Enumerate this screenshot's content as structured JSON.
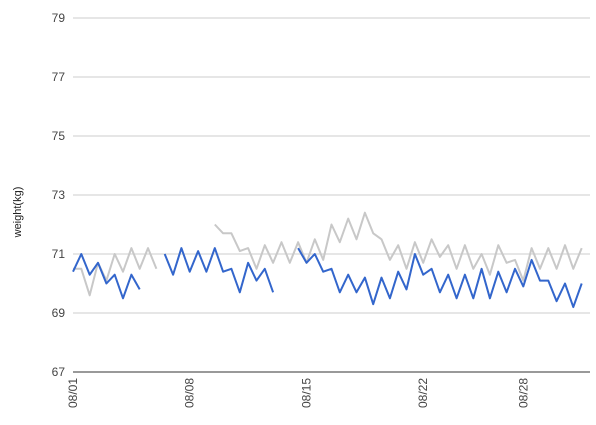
{
  "chart_data": {
    "type": "line",
    "ylabel": "weight(kg)",
    "xlabel": "",
    "ylim": [
      67,
      79
    ],
    "y_ticks": [
      67,
      69,
      71,
      73,
      75,
      77,
      79
    ],
    "x_ticks": [
      {
        "label": "08/01",
        "day": 1
      },
      {
        "label": "08/08",
        "day": 8
      },
      {
        "label": "08/15",
        "day": 15
      },
      {
        "label": "08/22",
        "day": 22
      },
      {
        "label": "08/28",
        "day": 28
      }
    ],
    "x_unit": "day of August (half-day readings)",
    "xlim": [
      1,
      32
    ],
    "grid": "horizontal",
    "legend": "none",
    "series": [
      {
        "color": "#3366cc",
        "points": [
          {
            "x": 1.0,
            "y": 70.4
          },
          {
            "x": 1.5,
            "y": 71.0
          },
          {
            "x": 2.0,
            "y": 70.3
          },
          {
            "x": 2.5,
            "y": 70.7
          },
          {
            "x": 3.0,
            "y": 70.0
          },
          {
            "x": 3.5,
            "y": 70.3
          },
          {
            "x": 4.0,
            "y": 69.5
          },
          {
            "x": 4.5,
            "y": 70.3
          },
          {
            "x": 5.0,
            "y": 69.8
          },
          {
            "x": 6.5,
            "y": 71.0
          },
          {
            "x": 7.0,
            "y": 70.3
          },
          {
            "x": 7.5,
            "y": 71.2
          },
          {
            "x": 8.0,
            "y": 70.4
          },
          {
            "x": 8.5,
            "y": 71.1
          },
          {
            "x": 9.0,
            "y": 70.4
          },
          {
            "x": 9.5,
            "y": 71.2
          },
          {
            "x": 10.0,
            "y": 70.4
          },
          {
            "x": 10.5,
            "y": 70.5
          },
          {
            "x": 11.0,
            "y": 69.7
          },
          {
            "x": 11.5,
            "y": 70.7
          },
          {
            "x": 12.0,
            "y": 70.1
          },
          {
            "x": 12.5,
            "y": 70.5
          },
          {
            "x": 13.0,
            "y": 69.7
          },
          {
            "x": 14.5,
            "y": 71.2
          },
          {
            "x": 15.0,
            "y": 70.7
          },
          {
            "x": 15.5,
            "y": 71.0
          },
          {
            "x": 16.0,
            "y": 70.4
          },
          {
            "x": 16.5,
            "y": 70.5
          },
          {
            "x": 17.0,
            "y": 69.7
          },
          {
            "x": 17.5,
            "y": 70.3
          },
          {
            "x": 18.0,
            "y": 69.7
          },
          {
            "x": 18.5,
            "y": 70.2
          },
          {
            "x": 19.0,
            "y": 69.3
          },
          {
            "x": 19.5,
            "y": 70.2
          },
          {
            "x": 20.0,
            "y": 69.5
          },
          {
            "x": 20.5,
            "y": 70.4
          },
          {
            "x": 21.0,
            "y": 69.8
          },
          {
            "x": 21.5,
            "y": 71.0
          },
          {
            "x": 22.0,
            "y": 70.3
          },
          {
            "x": 22.5,
            "y": 70.5
          },
          {
            "x": 23.0,
            "y": 69.7
          },
          {
            "x": 23.5,
            "y": 70.3
          },
          {
            "x": 24.0,
            "y": 69.5
          },
          {
            "x": 24.5,
            "y": 70.3
          },
          {
            "x": 25.0,
            "y": 69.5
          },
          {
            "x": 25.5,
            "y": 70.5
          },
          {
            "x": 26.0,
            "y": 69.5
          },
          {
            "x": 26.5,
            "y": 70.4
          },
          {
            "x": 27.0,
            "y": 69.7
          },
          {
            "x": 27.5,
            "y": 70.5
          },
          {
            "x": 28.0,
            "y": 69.9
          },
          {
            "x": 28.5,
            "y": 70.8
          },
          {
            "x": 29.0,
            "y": 70.1
          },
          {
            "x": 29.5,
            "y": 70.1
          },
          {
            "x": 30.0,
            "y": 69.4
          },
          {
            "x": 30.5,
            "y": 70.0
          },
          {
            "x": 31.0,
            "y": 69.2
          },
          {
            "x": 31.5,
            "y": 70.0
          }
        ]
      },
      {
        "color": "#c8c8c8",
        "points": [
          {
            "x": 1.0,
            "y": 70.5
          },
          {
            "x": 1.5,
            "y": 70.5
          },
          {
            "x": 2.0,
            "y": 69.6
          },
          {
            "x": 2.5,
            "y": 70.7
          },
          {
            "x": 3.0,
            "y": 70.1
          },
          {
            "x": 3.5,
            "y": 71.0
          },
          {
            "x": 4.0,
            "y": 70.4
          },
          {
            "x": 4.5,
            "y": 71.2
          },
          {
            "x": 5.0,
            "y": 70.5
          },
          {
            "x": 5.5,
            "y": 71.2
          },
          {
            "x": 6.0,
            "y": 70.5
          },
          {
            "x": 9.5,
            "y": 72.0
          },
          {
            "x": 10.0,
            "y": 71.7
          },
          {
            "x": 10.5,
            "y": 71.7
          },
          {
            "x": 11.0,
            "y": 71.1
          },
          {
            "x": 11.5,
            "y": 71.2
          },
          {
            "x": 12.0,
            "y": 70.5
          },
          {
            "x": 12.5,
            "y": 71.3
          },
          {
            "x": 13.0,
            "y": 70.7
          },
          {
            "x": 13.5,
            "y": 71.4
          },
          {
            "x": 14.0,
            "y": 70.7
          },
          {
            "x": 14.5,
            "y": 71.4
          },
          {
            "x": 15.0,
            "y": 70.7
          },
          {
            "x": 15.5,
            "y": 71.5
          },
          {
            "x": 16.0,
            "y": 70.8
          },
          {
            "x": 16.5,
            "y": 72.0
          },
          {
            "x": 17.0,
            "y": 71.4
          },
          {
            "x": 17.5,
            "y": 72.2
          },
          {
            "x": 18.0,
            "y": 71.5
          },
          {
            "x": 18.5,
            "y": 72.4
          },
          {
            "x": 19.0,
            "y": 71.7
          },
          {
            "x": 19.5,
            "y": 71.5
          },
          {
            "x": 20.0,
            "y": 70.8
          },
          {
            "x": 20.5,
            "y": 71.3
          },
          {
            "x": 21.0,
            "y": 70.5
          },
          {
            "x": 21.5,
            "y": 71.4
          },
          {
            "x": 22.0,
            "y": 70.7
          },
          {
            "x": 22.5,
            "y": 71.5
          },
          {
            "x": 23.0,
            "y": 70.9
          },
          {
            "x": 23.5,
            "y": 71.3
          },
          {
            "x": 24.0,
            "y": 70.5
          },
          {
            "x": 24.5,
            "y": 71.3
          },
          {
            "x": 25.0,
            "y": 70.5
          },
          {
            "x": 25.5,
            "y": 71.0
          },
          {
            "x": 26.0,
            "y": 70.3
          },
          {
            "x": 26.5,
            "y": 71.3
          },
          {
            "x": 27.0,
            "y": 70.7
          },
          {
            "x": 27.5,
            "y": 70.8
          },
          {
            "x": 28.0,
            "y": 70.1
          },
          {
            "x": 28.5,
            "y": 71.2
          },
          {
            "x": 29.0,
            "y": 70.5
          },
          {
            "x": 29.5,
            "y": 71.2
          },
          {
            "x": 30.0,
            "y": 70.5
          },
          {
            "x": 30.5,
            "y": 71.3
          },
          {
            "x": 31.0,
            "y": 70.5
          },
          {
            "x": 31.5,
            "y": 71.2
          }
        ]
      }
    ]
  }
}
